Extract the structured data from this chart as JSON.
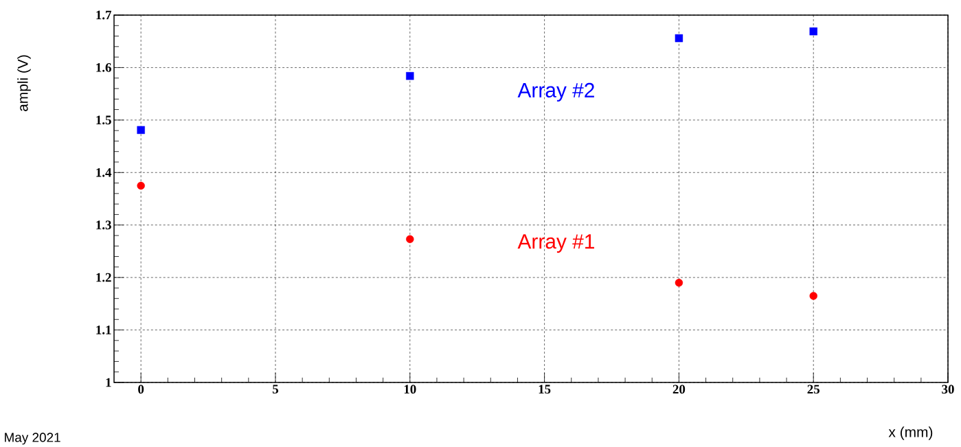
{
  "chart_data": {
    "type": "scatter",
    "xlabel": "x (mm)",
    "ylabel": "ampli (V)",
    "x": [
      0,
      10,
      20,
      25
    ],
    "series": [
      {
        "name": "Array #1",
        "color": "#ff0000",
        "marker": "circle",
        "values": [
          1.375,
          1.273,
          1.19,
          1.165
        ]
      },
      {
        "name": "Array #2",
        "color": "#0000ff",
        "marker": "square",
        "values": [
          1.481,
          1.584,
          1.656,
          1.669
        ]
      }
    ],
    "xlim": [
      -1,
      30
    ],
    "ylim": [
      1,
      1.7
    ],
    "xticks": [
      0,
      5,
      10,
      15,
      20,
      25,
      30
    ],
    "yticks": [
      1,
      1.1,
      1.2,
      1.3,
      1.4,
      1.5,
      1.6,
      1.7
    ],
    "grid": true,
    "annotations": [
      "May 2021"
    ]
  }
}
